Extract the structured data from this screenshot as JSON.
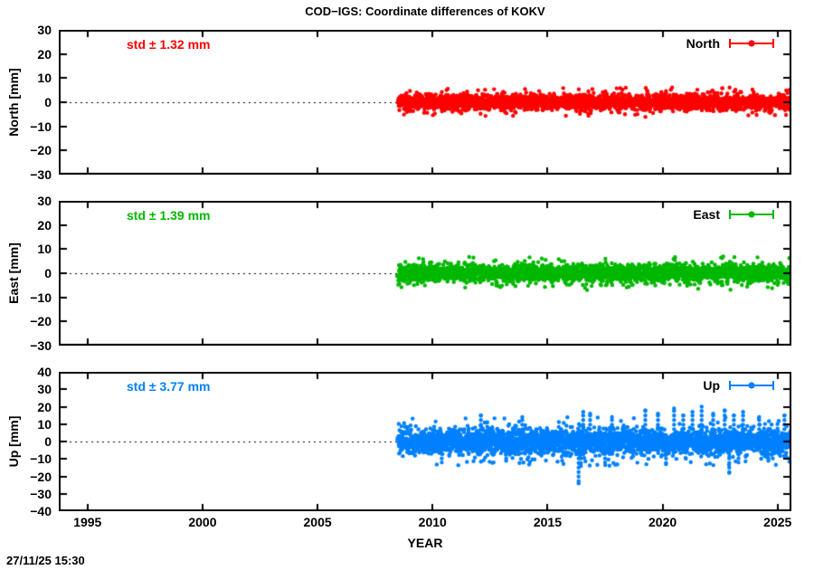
{
  "timestamp": "27/11/25 15:30",
  "chart_data": {
    "type": "scatter",
    "title": "COD−IGS: Coordinate differences of KOKV",
    "station": "KOKV",
    "x_axis": {
      "label": "YEAR",
      "range": [
        1993.75,
        2025.6
      ],
      "major_ticks": [
        "1995",
        "2000",
        "2005",
        "2010",
        "2015",
        "2020",
        "2025"
      ],
      "major_tick_values": [
        1995,
        2000,
        2005,
        2010,
        2015,
        2020,
        2025
      ]
    },
    "data_span": {
      "start_year": 2008.5,
      "end_year": 2025.6
    },
    "panels": [
      {
        "name": "North",
        "ylabel": "North [mm]",
        "legend_label": "North",
        "std_label": "std ± 1.32 mm",
        "std_mm": 1.32,
        "color": "#ff0000",
        "ylim": [
          -30,
          30
        ],
        "ytick_labels": [
          "30",
          "20",
          "10",
          "0",
          "−10",
          "−20",
          "−30"
        ],
        "ytick_values": [
          30,
          20,
          10,
          0,
          -10,
          -20,
          -30
        ],
        "mean_mm": 0,
        "typical_spread_mm": 4,
        "zero_line": true,
        "outliers": []
      },
      {
        "name": "East",
        "ylabel": "East [mm]",
        "legend_label": "East",
        "std_label": "std ± 1.39 mm",
        "std_mm": 1.39,
        "color": "#00b800",
        "ylim": [
          -30,
          30
        ],
        "ytick_labels": [
          "30",
          "20",
          "10",
          "0",
          "−10",
          "−20",
          "−30"
        ],
        "ytick_values": [
          30,
          20,
          10,
          0,
          -10,
          -20,
          -30
        ],
        "mean_mm": 0,
        "typical_spread_mm": 4.5,
        "zero_line": true,
        "outliers": []
      },
      {
        "name": "Up",
        "ylabel": "Up [mm]",
        "legend_label": "Up",
        "std_label": "std ± 3.77 mm",
        "std_mm": 3.77,
        "color": "#0080ff",
        "ylim": [
          -40,
          40
        ],
        "ytick_labels": [
          "40",
          "30",
          "20",
          "10",
          "0",
          "−10",
          "−20",
          "−30",
          "−40"
        ],
        "ytick_values": [
          40,
          30,
          20,
          10,
          0,
          -10,
          -20,
          -30,
          -40
        ],
        "mean_mm": 0,
        "typical_spread_mm": 9,
        "zero_line": true,
        "outliers": [
          {
            "year": 2012.1,
            "mm": 15
          },
          {
            "year": 2013.9,
            "mm": 14
          },
          {
            "year": 2016.35,
            "mm": -24
          },
          {
            "year": 2016.45,
            "mm": -14
          },
          {
            "year": 2016.55,
            "mm": 17
          },
          {
            "year": 2016.85,
            "mm": 16
          },
          {
            "year": 2017.5,
            "mm": -12
          },
          {
            "year": 2017.8,
            "mm": 14
          },
          {
            "year": 2019.25,
            "mm": 18
          },
          {
            "year": 2019.8,
            "mm": 16
          },
          {
            "year": 2020.15,
            "mm": -13
          },
          {
            "year": 2020.5,
            "mm": 19
          },
          {
            "year": 2020.9,
            "mm": 15
          },
          {
            "year": 2021.3,
            "mm": 17
          },
          {
            "year": 2021.7,
            "mm": 20
          },
          {
            "year": 2022.2,
            "mm": 16
          },
          {
            "year": 2022.7,
            "mm": 18
          },
          {
            "year": 2022.9,
            "mm": -18
          },
          {
            "year": 2023.1,
            "mm": 15
          },
          {
            "year": 2023.3,
            "mm": -12
          },
          {
            "year": 2023.5,
            "mm": 17
          },
          {
            "year": 2024.2,
            "mm": 14
          },
          {
            "year": 2024.6,
            "mm": -11
          },
          {
            "year": 2025.3,
            "mm": 15
          },
          {
            "year": 2010.4,
            "mm": -12
          },
          {
            "year": 2013.2,
            "mm": -11
          }
        ]
      }
    ]
  }
}
